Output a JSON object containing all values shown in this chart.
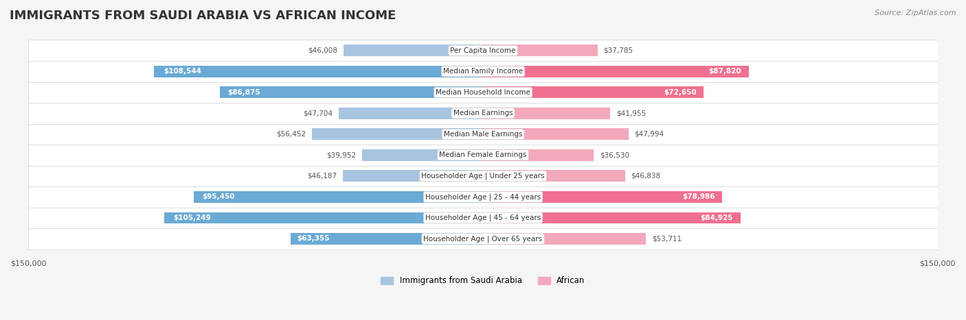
{
  "title": "IMMIGRANTS FROM SAUDI ARABIA VS AFRICAN INCOME",
  "source": "Source: ZipAtlas.com",
  "categories": [
    "Per Capita Income",
    "Median Family Income",
    "Median Household Income",
    "Median Earnings",
    "Median Male Earnings",
    "Median Female Earnings",
    "Householder Age | Under 25 years",
    "Householder Age | 25 - 44 years",
    "Householder Age | 45 - 64 years",
    "Householder Age | Over 65 years"
  ],
  "saudi_values": [
    46008,
    108544,
    86875,
    47704,
    56452,
    39952,
    46187,
    95450,
    105249,
    63355
  ],
  "african_values": [
    37785,
    87820,
    72650,
    41955,
    47994,
    36530,
    46838,
    78986,
    84925,
    53711
  ],
  "saudi_labels": [
    "$46,008",
    "$108,544",
    "$86,875",
    "$47,704",
    "$56,452",
    "$39,952",
    "$46,187",
    "$95,450",
    "$105,249",
    "$63,355"
  ],
  "african_labels": [
    "$37,785",
    "$87,820",
    "$72,650",
    "$41,955",
    "$47,994",
    "$36,530",
    "$46,838",
    "$78,986",
    "$84,925",
    "$53,711"
  ],
  "saudi_color": "#a8c4e0",
  "saudi_color_highlight": "#7bafd4",
  "african_color": "#f4a8b8",
  "african_color_highlight": "#f07090",
  "bar_height": 0.55,
  "xlim": 150000,
  "legend_saudi": "Immigrants from Saudi Arabia",
  "legend_african": "African",
  "background_color": "#f5f5f5",
  "row_bg_color": "#ffffff",
  "row_bg_alt_color": "#f0f0f0"
}
